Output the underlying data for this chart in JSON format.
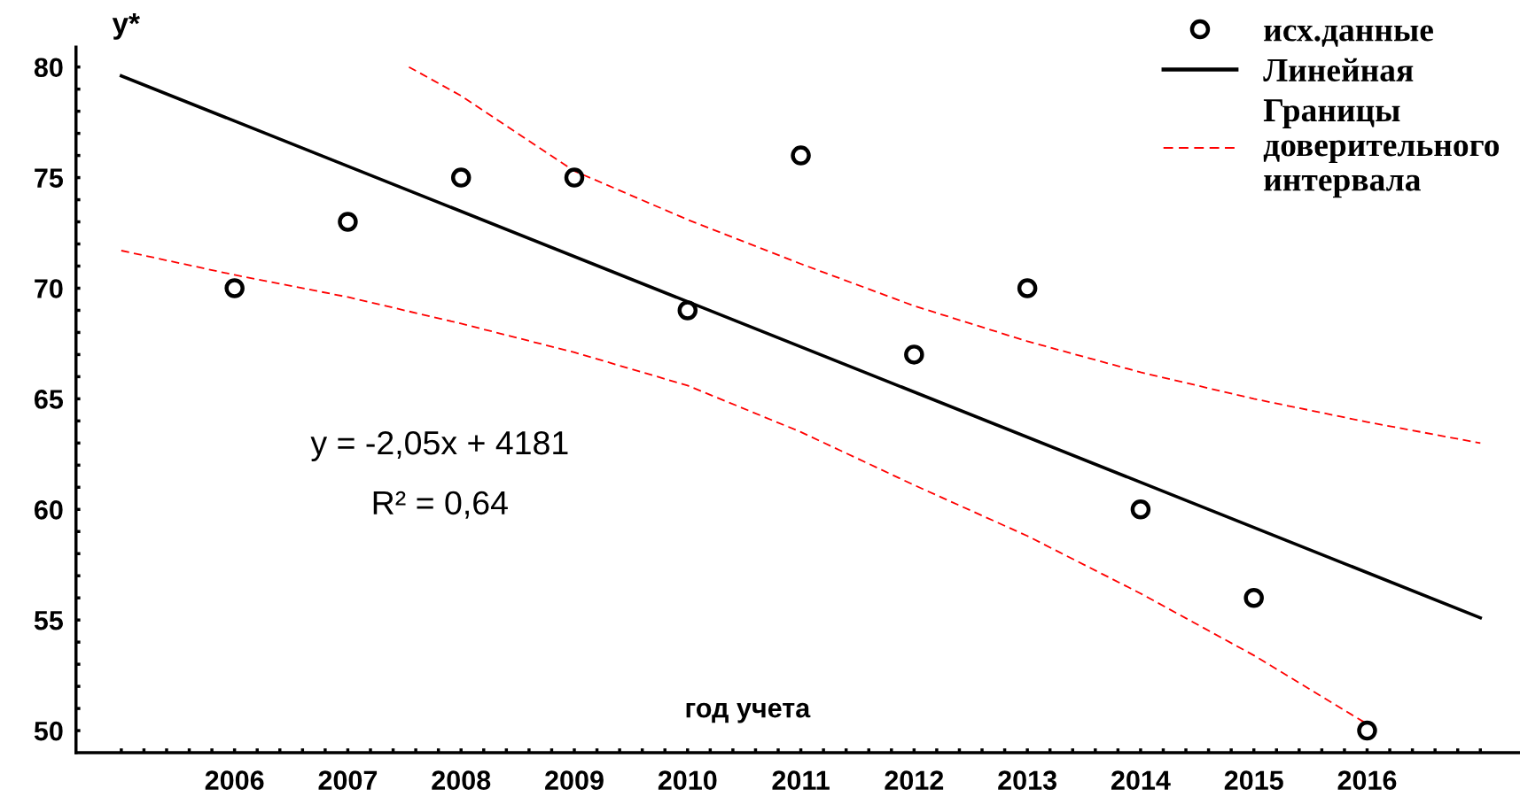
{
  "chart_data": {
    "type": "scatter",
    "xlabel": "год учета",
    "ylabel": "y*",
    "annotations": [
      "y = -2,05x + 4181",
      "R² = 0,64"
    ],
    "series": [
      {
        "name": "исх.данные",
        "color": "#000000",
        "marker": "circle",
        "x": [
          2006,
          2007,
          2008,
          2009,
          2010,
          2011,
          2012,
          2013,
          2014,
          2015,
          2016
        ],
        "values": [
          70,
          73,
          75,
          75,
          69,
          76,
          67,
          70,
          60,
          56,
          50
        ]
      },
      {
        "name": "Линейная",
        "type": "line",
        "color": "#000000",
        "line_style": "solid",
        "x": [
          2005,
          2017
        ],
        "values": [
          79.6,
          55.1
        ]
      },
      {
        "name": "Границы доверительного интервала",
        "type": "line",
        "color": "#ff0000",
        "line_style": "dashed",
        "x": [
          2007.54,
          2008,
          2009,
          2010,
          2011,
          2012,
          2013,
          2014,
          2015,
          2016,
          2017
        ],
        "values": [
          80.0,
          78.7,
          75.3,
          73.1,
          71.1,
          69.2,
          67.6,
          66.2,
          65.0,
          63.95,
          63.0
        ]
      },
      {
        "type": "line",
        "color": "#ff0000",
        "line_style": "dashed",
        "x": [
          2005,
          2006,
          2007,
          2008,
          2009,
          2010,
          2011,
          2012,
          2013,
          2014,
          2015,
          2016
        ],
        "values": [
          71.7,
          70.6,
          69.6,
          68.4,
          67.1,
          65.6,
          63.5,
          61.1,
          58.8,
          56.2,
          53.4,
          50.3
        ]
      }
    ],
    "xlim": [
      2004.6,
      2017.35
    ],
    "ylim": [
      49,
      80.9
    ],
    "xticks": [
      {
        "value": 2005,
        "label": null
      },
      {
        "value": 2005.2,
        "label": null
      },
      {
        "value": 2005.4,
        "label": null
      },
      {
        "value": 2005.6,
        "label": null
      },
      {
        "value": 2005.8,
        "label": null
      },
      2006,
      {
        "value": 2006.2,
        "label": null
      },
      {
        "value": 2006.4,
        "label": null
      },
      {
        "value": 2006.6,
        "label": null
      },
      {
        "value": 2006.8,
        "label": null
      },
      2007,
      {
        "value": 2007.2,
        "label": null
      },
      {
        "value": 2007.4,
        "label": null
      },
      {
        "value": 2007.6,
        "label": null
      },
      {
        "value": 2007.8,
        "label": null
      },
      2008,
      {
        "value": 2008.2,
        "label": null
      },
      {
        "value": 2008.4,
        "label": null
      },
      {
        "value": 2008.6,
        "label": null
      },
      {
        "value": 2008.8,
        "label": null
      },
      2009,
      {
        "value": 2009.2,
        "label": null
      },
      {
        "value": 2009.4,
        "label": null
      },
      {
        "value": 2009.6,
        "label": null
      },
      {
        "value": 2009.8,
        "label": null
      },
      2010,
      {
        "value": 2010.2,
        "label": null
      },
      {
        "value": 2010.4,
        "label": null
      },
      {
        "value": 2010.6,
        "label": null
      },
      {
        "value": 2010.8,
        "label": null
      },
      2011,
      {
        "value": 2011.2,
        "label": null
      },
      {
        "value": 2011.4,
        "label": null
      },
      {
        "value": 2011.6,
        "label": null
      },
      {
        "value": 2011.8,
        "label": null
      },
      2012,
      {
        "value": 2012.2,
        "label": null
      },
      {
        "value": 2012.4,
        "label": null
      },
      {
        "value": 2012.6,
        "label": null
      },
      {
        "value": 2012.8,
        "label": null
      },
      2013,
      {
        "value": 2013.2,
        "label": null
      },
      {
        "value": 2013.4,
        "label": null
      },
      {
        "value": 2013.6,
        "label": null
      },
      {
        "value": 2013.8,
        "label": null
      },
      2014,
      {
        "value": 2014.2,
        "label": null
      },
      {
        "value": 2014.4,
        "label": null
      },
      {
        "value": 2014.6,
        "label": null
      },
      {
        "value": 2014.8,
        "label": null
      },
      2015,
      {
        "value": 2015.2,
        "label": null
      },
      {
        "value": 2015.4,
        "label": null
      },
      {
        "value": 2015.6,
        "label": null
      },
      {
        "value": 2015.8,
        "label": null
      },
      2016,
      {
        "value": 2016.2,
        "label": null
      },
      {
        "value": 2016.4,
        "label": null
      },
      {
        "value": 2016.6,
        "label": null
      },
      {
        "value": 2016.8,
        "label": null
      },
      {
        "value": 2017,
        "label": null
      }
    ],
    "yticks": [
      50,
      {
        "value": 51,
        "label": null
      },
      {
        "value": 52,
        "label": null
      },
      {
        "value": 53,
        "label": null
      },
      {
        "value": 54,
        "label": null
      },
      55,
      {
        "value": 56,
        "label": null
      },
      {
        "value": 57,
        "label": null
      },
      {
        "value": 58,
        "label": null
      },
      {
        "value": 59,
        "label": null
      },
      60,
      {
        "value": 61,
        "label": null
      },
      {
        "value": 62,
        "label": null
      },
      {
        "value": 63,
        "label": null
      },
      {
        "value": 64,
        "label": null
      },
      65,
      {
        "value": 66,
        "label": null
      },
      {
        "value": 67,
        "label": null
      },
      {
        "value": 68,
        "label": null
      },
      {
        "value": 69,
        "label": null
      },
      70,
      {
        "value": 71,
        "label": null
      },
      {
        "value": 72,
        "label": null
      },
      {
        "value": 73,
        "label": null
      },
      {
        "value": 74,
        "label": null
      },
      75,
      {
        "value": 76,
        "label": null
      },
      {
        "value": 77,
        "label": null
      },
      {
        "value": 78,
        "label": null
      },
      {
        "value": 79,
        "label": null
      },
      80
    ],
    "grid": false,
    "legend": "top right"
  }
}
